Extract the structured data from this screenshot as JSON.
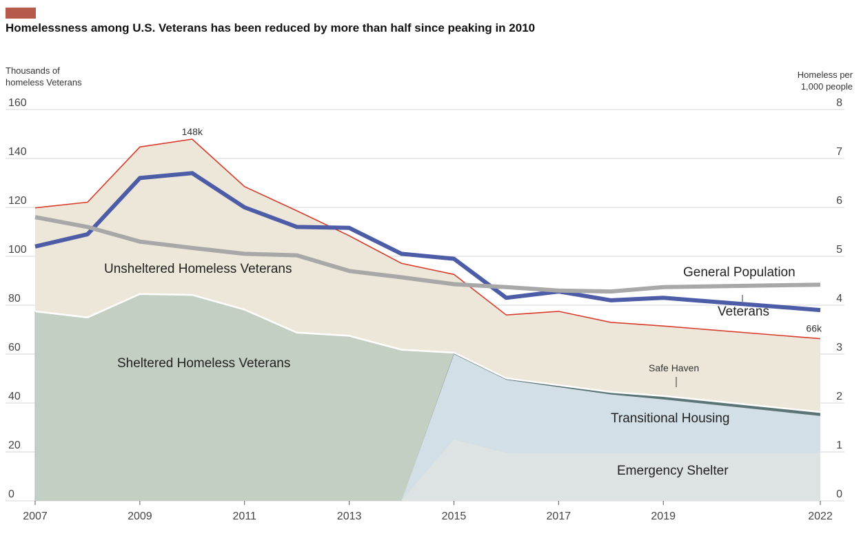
{
  "header": {
    "accent_color": "#b65a4c",
    "title": "Homelessness among U.S. Veterans has been reduced by more than half since peaking in 2010"
  },
  "axes": {
    "left_title_line1": "Thousands  of",
    "left_title_line2": "homeless Veterans",
    "right_title_line1": "Homeless per",
    "right_title_line2": "1,000 people"
  },
  "chart_data": {
    "type": "area",
    "title": "Homelessness among U.S. Veterans has been reduced by more than half since peaking in 2010",
    "ylabel": "Thousands  of homeless Veterans",
    "y2label": "Homeless per 1,000 people",
    "ylim": [
      0,
      160
    ],
    "y2lim": [
      0,
      8
    ],
    "xlim": [
      2007,
      2022
    ],
    "x_ticks": [
      "2007",
      "2009",
      "2011",
      "2013",
      "2015",
      "2017",
      "2019",
      "2022"
    ],
    "y_ticks": [
      "0",
      "20",
      "40",
      "60",
      "80",
      "100",
      "120",
      "140",
      "160"
    ],
    "y2_ticks": [
      "0",
      "1",
      "2",
      "3",
      "4",
      "5",
      "6",
      "7",
      "8"
    ],
    "grid": true,
    "colors": {
      "unsheltered": "#ece7d8",
      "sheltered": "#c4cfc3",
      "transitional": "#d2dfe7",
      "emergency": "#dde2e3",
      "safe_haven": "#5b7475",
      "total_line": "#d93a2c",
      "veterans_rate": "#4d5ca6",
      "general_rate": "#a8a8a8"
    },
    "total_homeless_veterans": {
      "x": [
        2007,
        2008,
        2009,
        2010,
        2011,
        2012,
        2013,
        2014,
        2015,
        2016,
        2017,
        2018,
        2019,
        2020,
        2021,
        2022
      ],
      "values": [
        119.8,
        122.1,
        144.7,
        147.9,
        128.5,
        118.6,
        108.4,
        97.1,
        92.6,
        76.0,
        77.5,
        73.0,
        71.5,
        null,
        null,
        66.3
      ]
    },
    "sheltered_homeless_veterans": {
      "x": [
        2007,
        2008,
        2009,
        2010,
        2011,
        2012,
        2013,
        2014,
        2015
      ],
      "values": [
        77.5,
        75.0,
        84.6,
        84.2,
        78.2,
        68.8,
        67.5,
        61.8,
        60.6
      ]
    },
    "shelter_breakdown": {
      "x": [
        2014,
        2015,
        2016,
        2018,
        2019,
        2022
      ],
      "emergency_shelter": [
        0,
        25.0,
        19.5,
        19.5,
        19.5,
        19.5
      ],
      "transitional_housing": [
        0,
        35.0,
        30.0,
        24.0,
        22.0,
        15.2
      ],
      "safe_haven": [
        0,
        0.4,
        0.6,
        1.0,
        1.4,
        1.6
      ]
    },
    "series": [
      {
        "name": "Veterans",
        "axis": "right",
        "x": [
          2007,
          2008,
          2009,
          2010,
          2011,
          2012,
          2013,
          2014,
          2015,
          2016,
          2017,
          2018,
          2019,
          2022
        ],
        "values": [
          5.2,
          5.45,
          6.6,
          6.7,
          6.0,
          5.6,
          5.58,
          5.05,
          4.95,
          4.15,
          4.28,
          4.1,
          4.15,
          3.9
        ]
      },
      {
        "name": "General Population",
        "axis": "right",
        "x": [
          2007,
          2008,
          2009,
          2010,
          2011,
          2012,
          2013,
          2014,
          2015,
          2016,
          2017,
          2018,
          2019,
          2022
        ],
        "values": [
          5.8,
          5.6,
          5.3,
          5.17,
          5.05,
          5.02,
          4.7,
          4.57,
          4.43,
          4.37,
          4.3,
          4.28,
          4.37,
          4.42
        ]
      }
    ],
    "annotations": {
      "peak_label": "148k",
      "end_label": "66k",
      "unsheltered_label": "Unsheltered Homeless Veterans",
      "sheltered_label": "Sheltered Homeless Veterans",
      "safe_haven_label": "Safe Haven",
      "transitional_label": "Transitional Housing",
      "emergency_label": "Emergency Shelter",
      "general_label": "General Population",
      "veterans_label": "Veterans"
    }
  }
}
